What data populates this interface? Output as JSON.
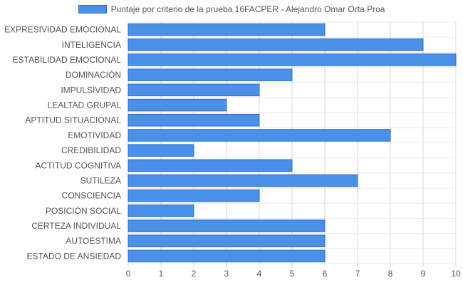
{
  "chart_data": {
    "type": "bar",
    "orientation": "horizontal",
    "title": "",
    "xlabel": "",
    "ylabel": "",
    "xlim": [
      0,
      10
    ],
    "x_ticks": [
      "0",
      "1",
      "2",
      "3",
      "4",
      "5",
      "6",
      "7",
      "8",
      "9",
      "10"
    ],
    "grid": true,
    "legend_position": "top",
    "colors": {
      "bar_fill": "#4a90e8",
      "bar_border": "#2f6fc9",
      "grid": "#d9d9d9",
      "label": "#555555"
    },
    "categories": [
      "EXPRESIVIDAD EMOCIONAL",
      "INTELIGENCIA",
      "ESTABILIDAD EMOCIONAL",
      "DOMINACIÓN",
      "IMPULSIVIDAD",
      "LEALTAD GRUPAL",
      "APTITUD SITUACIONAL",
      "EMOTIVIDAD",
      "CREDIBILIDAD",
      "ACTITUD COGNITIVA",
      "SUTILEZA",
      "CONSCIENCIA",
      "POSICIÓN SOCIAL",
      "CERTEZA INDIVIDUAL",
      "AUTOESTIMA",
      "ESTADO DE ANSIEDAD"
    ],
    "series": [
      {
        "name": "Puntaje por criterio de la prueba 16FACPER - Alejandro Omar Orta Proa",
        "values": [
          6,
          9,
          10,
          5,
          4,
          3,
          4,
          8,
          2,
          5,
          7,
          4,
          2,
          6,
          6,
          6
        ]
      }
    ]
  }
}
